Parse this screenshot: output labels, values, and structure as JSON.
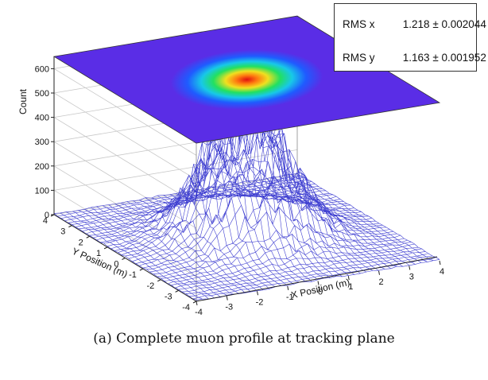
{
  "chart_data": {
    "type": "surface",
    "zlabel": "Count",
    "xlabel": "X Position (m)",
    "ylabel": "Y Position (m)",
    "x_ticks": [
      "-4",
      "-3",
      "-2",
      "-1",
      "0",
      "1",
      "2",
      "3",
      "4"
    ],
    "y_ticks": [
      "4",
      "3",
      "2",
      "1",
      "0",
      "-1",
      "-2",
      "-3",
      "-4"
    ],
    "z_ticks": [
      "0",
      "100",
      "200",
      "300",
      "400",
      "500",
      "600"
    ],
    "xlim": [
      -4,
      4
    ],
    "ylim": [
      -4,
      4
    ],
    "zlim": [
      0,
      650
    ],
    "peak_count": 520,
    "colormap": [
      "#3f1fd0",
      "#1f5bff",
      "#18c8e8",
      "#22e060",
      "#f0e020",
      "#ff7a10",
      "#e01010"
    ],
    "mesh_color": "#2a2acc",
    "top_plane_color": "#5a2de6",
    "stats": [
      {
        "label": "RMS x",
        "value": "1.218",
        "pm": "±",
        "error": "0.002044"
      },
      {
        "label": "RMS y",
        "value": "1.163",
        "pm": "±",
        "error": "0.001952"
      }
    ]
  },
  "caption": "(a) Complete muon profile at tracking plane"
}
